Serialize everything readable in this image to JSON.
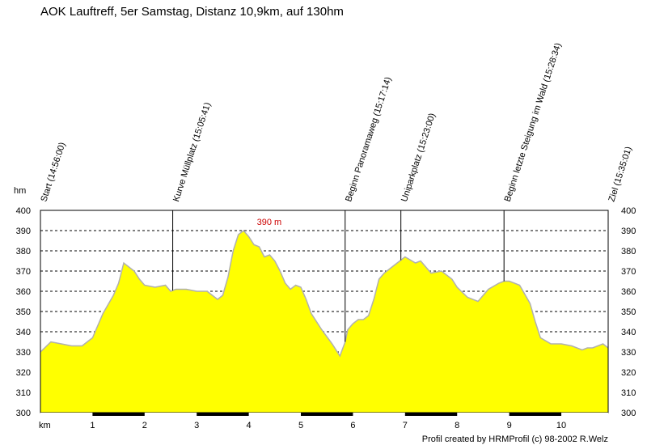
{
  "chart_data": {
    "type": "area",
    "title": "AOK Lauftreff, 5er Samstag, Distanz 10,9km, auf 130hm",
    "ylabel": "hm",
    "xlabel": "km",
    "ylim": [
      300,
      400
    ],
    "xlim": [
      0,
      10.9
    ],
    "grid": true,
    "fill_color": "#ffff00",
    "line_color": "#b0b0b0",
    "yticks": [
      "400",
      "390",
      "380",
      "370",
      "360",
      "350",
      "340",
      "330",
      "320",
      "310",
      "300"
    ],
    "xticks": [
      {
        "value": 1,
        "label": "1"
      },
      {
        "value": 2,
        "label": "2"
      },
      {
        "value": 3,
        "label": "3"
      },
      {
        "value": 4,
        "label": "4"
      },
      {
        "value": 5,
        "label": "5"
      },
      {
        "value": 6,
        "label": "6"
      },
      {
        "value": 7,
        "label": "7"
      },
      {
        "value": 8,
        "label": "8"
      },
      {
        "value": 9,
        "label": "9"
      },
      {
        "value": 10,
        "label": "10"
      }
    ],
    "peak_annotation": {
      "x": 4.02,
      "y": 390,
      "label": "390 m"
    },
    "waypoints": [
      {
        "x": 0.0,
        "label": "Start (14:56:00)"
      },
      {
        "x": 2.54,
        "label": "Kurve Müllplatz (15:05:41)"
      },
      {
        "x": 5.85,
        "label": "Beginn Panoramaweg (15:17:14)"
      },
      {
        "x": 6.92,
        "label": "Uniparkplatz (15:23:00)"
      },
      {
        "x": 8.9,
        "label": "Beginn letzte Steigung im Wald (15:28:34)"
      },
      {
        "x": 10.9,
        "label": "Ziel (15:35:01)"
      }
    ],
    "x": [
      0.0,
      0.2,
      0.4,
      0.6,
      0.8,
      1.0,
      1.2,
      1.4,
      1.5,
      1.6,
      1.8,
      1.9,
      2.0,
      2.2,
      2.4,
      2.5,
      2.6,
      2.8,
      3.0,
      3.2,
      3.4,
      3.5,
      3.6,
      3.7,
      3.8,
      3.9,
      4.0,
      4.1,
      4.2,
      4.3,
      4.4,
      4.5,
      4.6,
      4.7,
      4.8,
      4.9,
      5.0,
      5.1,
      5.2,
      5.4,
      5.6,
      5.75,
      5.85,
      5.9,
      6.0,
      6.1,
      6.2,
      6.3,
      6.4,
      6.5,
      6.6,
      6.7,
      6.8,
      6.9,
      7.0,
      7.2,
      7.3,
      7.5,
      7.7,
      7.9,
      8.0,
      8.2,
      8.4,
      8.6,
      8.8,
      8.9,
      9.0,
      9.2,
      9.4,
      9.5,
      9.6,
      9.8,
      10.0,
      10.2,
      10.4,
      10.5,
      10.6,
      10.8,
      10.9
    ],
    "values": [
      330,
      335,
      334,
      333,
      333,
      337,
      349,
      358,
      364,
      374,
      370,
      366,
      363,
      362,
      363,
      360,
      361,
      361,
      360,
      360,
      356,
      358,
      367,
      380,
      388,
      390,
      387,
      383,
      382,
      377,
      378,
      375,
      370,
      364,
      361,
      363,
      362,
      356,
      349,
      341,
      334,
      328,
      335,
      341,
      344,
      346,
      346,
      348,
      356,
      366,
      369,
      371,
      373,
      375,
      377,
      374,
      375,
      369,
      370,
      366,
      362,
      357,
      355,
      361,
      364,
      365,
      365,
      363,
      354,
      345,
      337,
      334,
      334,
      333,
      331,
      332,
      332,
      334,
      332
    ]
  },
  "credit": "Profil created by HRMProfil (c) 98-2002 R.Welz"
}
